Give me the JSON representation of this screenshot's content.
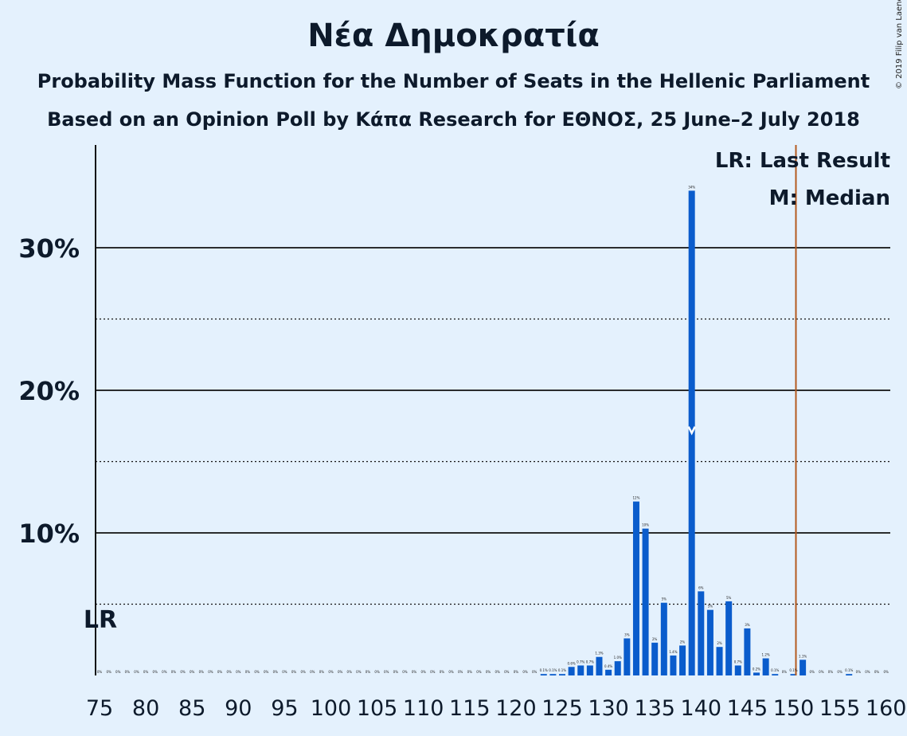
{
  "title": "Νέα Δημοκρατία",
  "subtitle1": "Probability Mass Function for the Number of Seats in the Hellenic Parliament",
  "subtitle2": "Based on an Opinion Poll by Κάπα Research for ΕΘΝΟΣ, 25 June–2 July 2018",
  "copyright": "© 2019 Filip van Laenen",
  "colors": {
    "background": "#e4f1fd",
    "bar": "#0a5ccc",
    "last_result_line": "#b35a1f",
    "text": "#0d1a2b"
  },
  "chart_data": {
    "type": "bar",
    "x_start": 75,
    "x_end": 160,
    "x_tick_step": 5,
    "x": [
      75,
      76,
      77,
      78,
      79,
      80,
      81,
      82,
      83,
      84,
      85,
      86,
      87,
      88,
      89,
      90,
      91,
      92,
      93,
      94,
      95,
      96,
      97,
      98,
      99,
      100,
      101,
      102,
      103,
      104,
      105,
      106,
      107,
      108,
      109,
      110,
      111,
      112,
      113,
      114,
      115,
      116,
      117,
      118,
      119,
      120,
      121,
      122,
      123,
      124,
      125,
      126,
      127,
      128,
      129,
      130,
      131,
      132,
      133,
      134,
      135,
      136,
      137,
      138,
      139,
      140,
      141,
      142,
      143,
      144,
      145,
      146,
      147,
      148,
      149,
      150,
      151,
      152,
      153,
      154,
      155,
      156,
      157,
      158,
      159,
      160
    ],
    "values": [
      0,
      0,
      0,
      0,
      0,
      0,
      0,
      0,
      0,
      0,
      0,
      0,
      0,
      0,
      0,
      0,
      0,
      0,
      0,
      0,
      0,
      0,
      0,
      0,
      0,
      0,
      0,
      0,
      0,
      0,
      0,
      0,
      0,
      0,
      0,
      0,
      0,
      0,
      0,
      0,
      0,
      0,
      0,
      0,
      0,
      0,
      0,
      0,
      0.1,
      0.1,
      0.1,
      0.6,
      0.7,
      0.7,
      1.3,
      0.4,
      1.0,
      2.6,
      12.2,
      10.3,
      2.3,
      5.1,
      1.4,
      2.1,
      34.0,
      5.9,
      4.6,
      2.0,
      5.2,
      0.7,
      3.3,
      0.2,
      1.2,
      0.1,
      0,
      0.1,
      1.1,
      0,
      0,
      0,
      0,
      0.1,
      0,
      0,
      0,
      0
    ],
    "bar_labels": [
      "0%",
      "0%",
      "0%",
      "0%",
      "0%",
      "0%",
      "0%",
      "0%",
      "0%",
      "0%",
      "0%",
      "0%",
      "0%",
      "0%",
      "0%",
      "0%",
      "0%",
      "0%",
      "0%",
      "0%",
      "0%",
      "0%",
      "0%",
      "0%",
      "0%",
      "0%",
      "0%",
      "0%",
      "0%",
      "0%",
      "0%",
      "0%",
      "0%",
      "0%",
      "0%",
      "0%",
      "0%",
      "0%",
      "0%",
      "0%",
      "0%",
      "0%",
      "0%",
      "0%",
      "0%",
      "0%",
      "0%",
      "0%",
      "0.1%",
      "0.1%",
      "0.1%",
      "0.6%",
      "0.7%",
      "0.7%",
      "1.3%",
      "0.4%",
      "1.0%",
      "3%",
      "12%",
      "10%",
      "2%",
      "5%",
      "1.4%",
      "2%",
      "34%",
      "6%",
      "5%",
      "2%",
      "5%",
      "0.7%",
      "3%",
      "0.2%",
      "1.2%",
      "0.1%",
      "0%",
      "0.1%",
      "1.1%",
      "0%",
      "0%",
      "0%",
      "0%",
      "0.1%",
      "0%",
      "0%",
      "0%",
      "0%"
    ],
    "ylim": [
      0,
      37
    ],
    "y_ticks": [
      {
        "value": 10,
        "label": "10%"
      },
      {
        "value": 20,
        "label": "20%"
      },
      {
        "value": 30,
        "label": "30%"
      }
    ],
    "dotted_gridlines": [
      5,
      15,
      25
    ],
    "median_seat": 139,
    "last_result_seat": 150,
    "lr_marker_label": "LR",
    "legend": [
      "LR: Last Result",
      "M: Median"
    ]
  }
}
